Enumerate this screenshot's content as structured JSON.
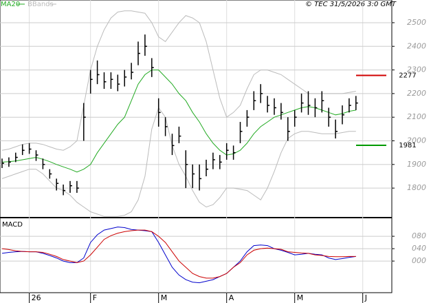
{
  "chart_data": [
    {
      "type": "ohlc",
      "annotation": "© TEC 31/5/2026 3:0 GMT",
      "categories": [
        null,
        null,
        null,
        null,
        "26",
        null,
        null,
        null,
        null,
        null,
        null,
        null,
        null,
        "F",
        null,
        null,
        null,
        null,
        null,
        null,
        null,
        null,
        null,
        "M",
        null,
        null,
        null,
        null,
        null,
        null,
        null,
        null,
        null,
        "A",
        null,
        null,
        null,
        null,
        null,
        null,
        null,
        null,
        null,
        "M",
        null,
        null,
        null,
        null,
        null,
        null,
        null,
        null,
        null,
        "J"
      ],
      "high": [
        1925,
        1930,
        1950,
        1985,
        1990,
        1960,
        1925,
        1880,
        1840,
        1815,
        1830,
        1830,
        2160,
        2300,
        2340,
        2290,
        2290,
        2280,
        2300,
        2330,
        2420,
        2450,
        2350,
        2180,
        2100,
        2030,
        2060,
        1960,
        1900,
        1900,
        1920,
        1950,
        1940,
        1990,
        1980,
        2080,
        2130,
        2210,
        2240,
        2190,
        2180,
        2160,
        2100,
        2130,
        2200,
        2210,
        2180,
        2210,
        2140,
        2090,
        2150,
        2180,
        2190,
        null
      ],
      "low": [
        1885,
        1890,
        1910,
        1940,
        1945,
        1915,
        1880,
        1840,
        1790,
        1770,
        1780,
        1780,
        2000,
        2200,
        2240,
        2220,
        2220,
        2210,
        2230,
        2260,
        2320,
        2360,
        2270,
        2060,
        2020,
        1940,
        1990,
        1800,
        1800,
        1790,
        1850,
        1880,
        1880,
        1920,
        1920,
        1990,
        2060,
        2130,
        2160,
        2120,
        2110,
        2090,
        2000,
        2060,
        2120,
        2110,
        2100,
        2120,
        2060,
        2010,
        2070,
        2120,
        2130,
        null
      ],
      "close": [
        1905,
        1910,
        1930,
        1960,
        1965,
        1940,
        1900,
        1860,
        1820,
        1790,
        1810,
        1800,
        2100,
        2260,
        2280,
        2250,
        2260,
        2240,
        2270,
        2290,
        2370,
        2400,
        2310,
        2120,
        2060,
        1980,
        2020,
        1900,
        1860,
        1840,
        1880,
        1920,
        1910,
        1960,
        1950,
        2040,
        2100,
        2170,
        2200,
        2150,
        2140,
        2120,
        2040,
        2100,
        2160,
        2150,
        2140,
        2170,
        2100,
        2040,
        2110,
        2150,
        2160,
        null
      ],
      "color": "#000000",
      "series": [
        {
          "name": "MA20",
          "color": "#22aa22",
          "values": [
            1910,
            1912,
            1915,
            1920,
            1925,
            1930,
            1922,
            1912,
            1900,
            1890,
            1880,
            1868,
            1880,
            1900,
            1950,
            1990,
            2030,
            2070,
            2100,
            2170,
            2240,
            2280,
            2300,
            2300,
            2270,
            2240,
            2200,
            2170,
            2120,
            2080,
            2030,
            1990,
            1960,
            1940,
            1945,
            1960,
            1990,
            2030,
            2060,
            2080,
            2100,
            2110,
            2120,
            2130,
            2140,
            2145,
            2140,
            2130,
            2120,
            2110,
            2115,
            2125,
            2130,
            null
          ]
        }
      ],
      "bands": {
        "name": "BBands",
        "color": "#bbbbbb",
        "upper": [
          1960,
          1965,
          1975,
          1985,
          1990,
          1990,
          1985,
          1975,
          1965,
          1960,
          1975,
          2000,
          2150,
          2300,
          2400,
          2470,
          2520,
          2545,
          2550,
          2550,
          2545,
          2540,
          2500,
          2440,
          2420,
          2460,
          2500,
          2530,
          2520,
          2500,
          2420,
          2300,
          2180,
          2100,
          2120,
          2150,
          2220,
          2280,
          2300,
          2300,
          2290,
          2280,
          2260,
          2240,
          2220,
          2200,
          2200,
          2200,
          2200,
          2200,
          2200,
          2205,
          2210,
          null
        ],
        "lower": [
          1840,
          1850,
          1860,
          1870,
          1880,
          1880,
          1860,
          1830,
          1800,
          1790,
          1770,
          1740,
          1720,
          1700,
          1690,
          1680,
          1680,
          1680,
          1685,
          1700,
          1750,
          1850,
          2050,
          2140,
          2100,
          1980,
          1900,
          1850,
          1790,
          1740,
          1720,
          1730,
          1760,
          1800,
          1800,
          1795,
          1790,
          1770,
          1750,
          1800,
          1870,
          1950,
          2010,
          2030,
          2040,
          2040,
          2035,
          2030,
          2030,
          2030,
          2035,
          2040,
          2040,
          null
        ]
      },
      "levels": [
        {
          "value": 2277,
          "color": "#d00000"
        },
        {
          "value": 1981,
          "color": "#009900"
        }
      ],
      "ylim": [
        1678,
        2596
      ],
      "yticks": [
        1800,
        1900,
        2000,
        2100,
        2200,
        2300,
        2400,
        2500
      ],
      "grid": true
    },
    {
      "type": "line",
      "title": "MACD",
      "series": [
        {
          "color": "#0000cc",
          "values": [
            25,
            28,
            30,
            31,
            30,
            30,
            25,
            18,
            10,
            0,
            -5,
            -5,
            10,
            60,
            85,
            100,
            105,
            110,
            108,
            102,
            100,
            98,
            95,
            60,
            20,
            -20,
            -45,
            -60,
            -68,
            -70,
            -65,
            -60,
            -50,
            -40,
            -20,
            0,
            30,
            50,
            52,
            50,
            40,
            35,
            28,
            20,
            22,
            25,
            22,
            20,
            10,
            5,
            8,
            12,
            15,
            null
          ]
        },
        {
          "color": "#cc0000",
          "values": [
            40,
            37,
            33,
            31,
            30,
            30,
            28,
            22,
            15,
            5,
            0,
            -5,
            0,
            20,
            45,
            70,
            82,
            90,
            95,
            98,
            100,
            100,
            95,
            80,
            60,
            30,
            0,
            -20,
            -40,
            -50,
            -55,
            -55,
            -50,
            -40,
            -20,
            -5,
            20,
            35,
            40,
            42,
            40,
            38,
            30,
            28,
            26,
            25,
            20,
            18,
            15,
            14,
            14,
            15,
            15,
            null
          ]
        }
      ],
      "ylim": [
        -102,
        138
      ],
      "yticks": [
        {
          "value": 0,
          "label": "000"
        },
        {
          "value": 40,
          "label": "040"
        },
        {
          "value": 80,
          "label": "080"
        }
      ],
      "grid": true
    }
  ]
}
